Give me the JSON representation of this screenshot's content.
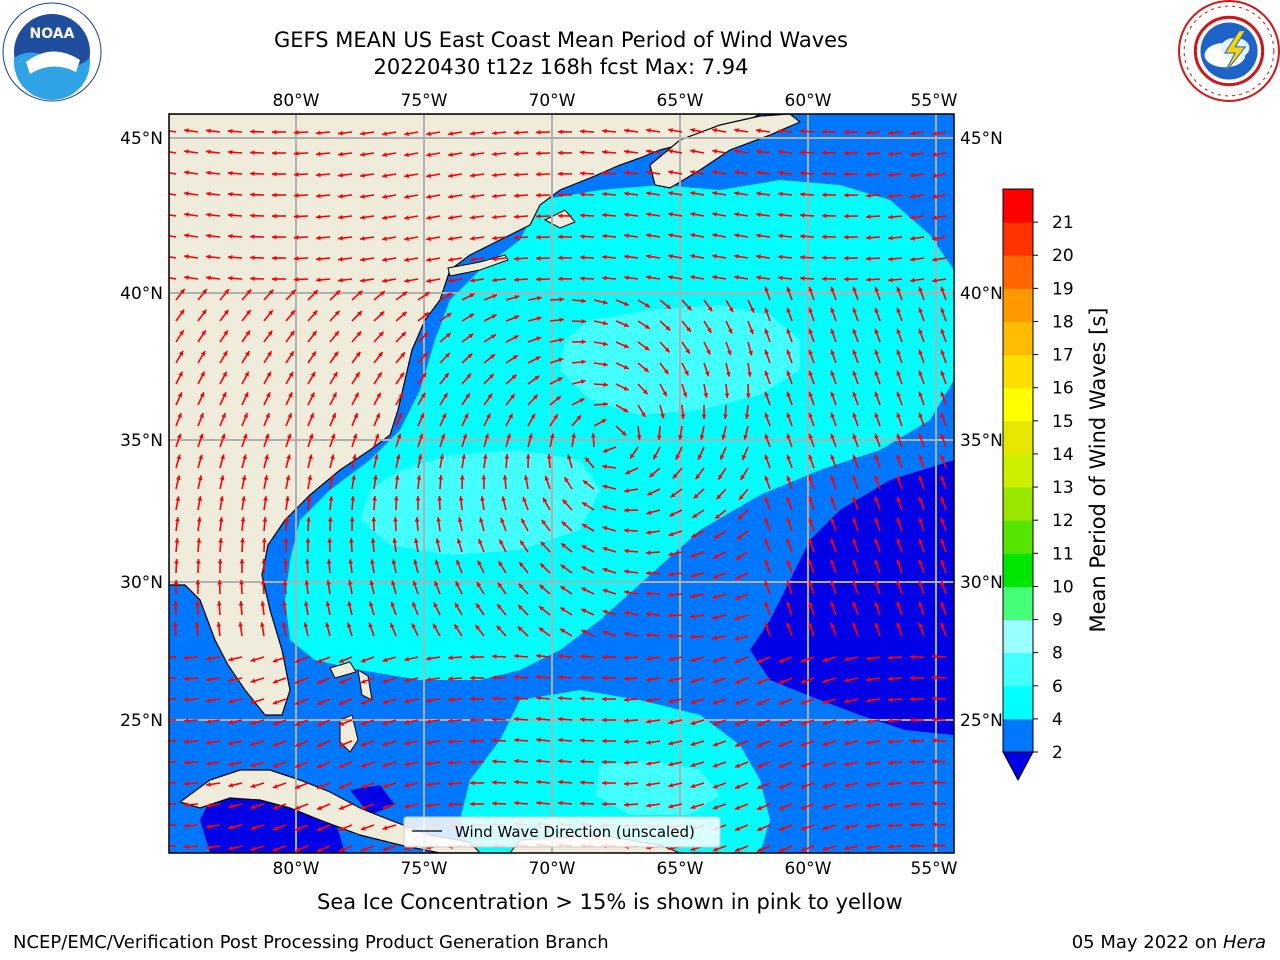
{
  "title": {
    "line1": "GEFS MEAN US East Coast Mean Period of Wind Waves",
    "line2": "20220430 t12z 168h fcst   Max: 7.94"
  },
  "logos": {
    "left": "noaa-logo",
    "right": "national-weather-service-logo"
  },
  "map": {
    "lon_labels": [
      "80°W",
      "75°W",
      "70°W",
      "65°W",
      "60°W",
      "55°W"
    ],
    "lat_labels": [
      "45°N",
      "40°N",
      "35°N",
      "30°N",
      "25°N"
    ],
    "legend_label": "Wind Wave Direction (unscaled)",
    "colors": {
      "land": "#efecdc",
      "period_0_2": "#0000e6",
      "period_2_4": "#0077ff",
      "period_4_6": "#00ffff",
      "period_6_8": "#44ffff",
      "arrow": "#ff0000",
      "grid": "#b0b0b0"
    }
  },
  "colorbar": {
    "label": "Mean Period of Wind Waves [s]",
    "ticks": [
      "2",
      "4",
      "6",
      "8",
      "9",
      "10",
      "11",
      "12",
      "13",
      "14",
      "15",
      "16",
      "17",
      "18",
      "19",
      "20",
      "21"
    ],
    "colors": [
      "#0077ff",
      "#00ffff",
      "#44ffff",
      "#99ffff",
      "#44ff77",
      "#00e600",
      "#55e600",
      "#99e600",
      "#ccf000",
      "#e6e600",
      "#ffff00",
      "#ffdd00",
      "#ffbb00",
      "#ff9900",
      "#ff6600",
      "#ff3300",
      "#ff0000"
    ],
    "under_color": "#0000e6"
  },
  "sea_ice_note": "Sea Ice Concentration > 15% is shown in pink to yellow",
  "footer": {
    "credit": "NCEP/EMC/Verification Post Processing Product Generation Branch",
    "date": "05 May 2022 on ",
    "machine": "Hera"
  }
}
